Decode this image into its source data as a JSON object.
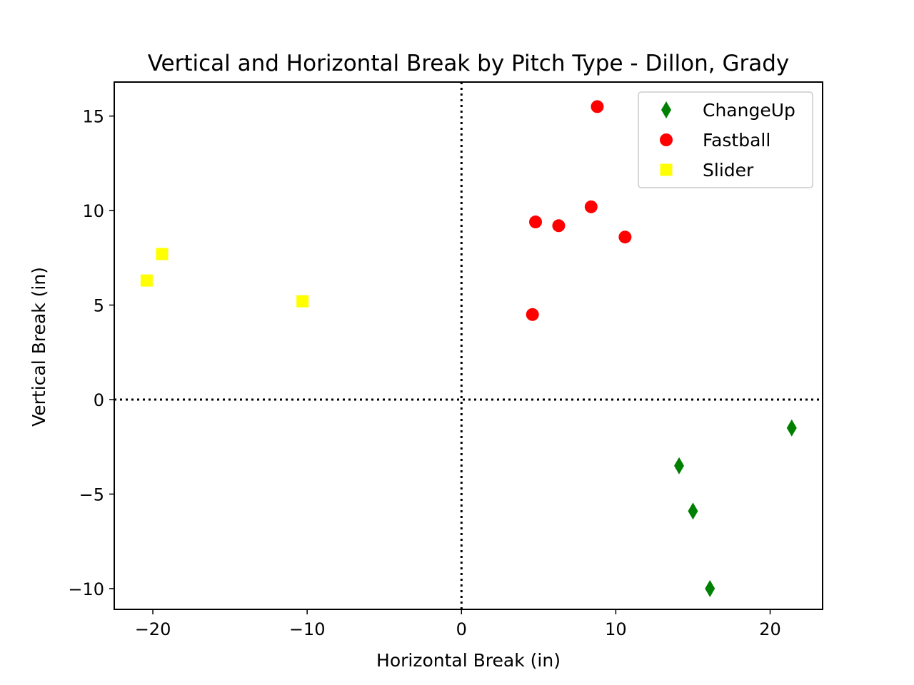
{
  "chart_data": {
    "type": "scatter",
    "title": "Vertical and Horizontal Break by Pitch Type - Dillon, Grady",
    "xlabel": "Horizontal Break (in)",
    "ylabel": "Vertical Break (in)",
    "xlim": [
      -22.5,
      23.4
    ],
    "ylim": [
      -11.1,
      16.8
    ],
    "xticks": [
      -20,
      -10,
      0,
      10,
      20
    ],
    "xtick_labels": [
      "−20",
      "−10",
      "0",
      "10",
      "20"
    ],
    "yticks": [
      -10,
      -5,
      0,
      5,
      10,
      15
    ],
    "ytick_labels": [
      "−10",
      "−5",
      "0",
      "5",
      "10",
      "15"
    ],
    "grid": false,
    "legend_position": "top-right",
    "reference_lines": [
      {
        "axis": "x",
        "value": 0,
        "style": "dotted",
        "color": "#000000"
      },
      {
        "axis": "y",
        "value": 0,
        "style": "dotted",
        "color": "#000000"
      }
    ],
    "series": [
      {
        "name": "ChangeUp",
        "marker": "diamond",
        "color": "#008000",
        "points": [
          [
            21.4,
            -1.5
          ],
          [
            14.1,
            -3.5
          ],
          [
            15.0,
            -5.9
          ],
          [
            16.1,
            -10.0
          ]
        ]
      },
      {
        "name": "Fastball",
        "marker": "circle",
        "color": "#ff0000",
        "points": [
          [
            8.8,
            15.5
          ],
          [
            8.4,
            10.2
          ],
          [
            4.8,
            9.4
          ],
          [
            6.3,
            9.2
          ],
          [
            10.6,
            8.6
          ],
          [
            4.6,
            4.5
          ]
        ]
      },
      {
        "name": "Slider",
        "marker": "square",
        "color": "#ffff00",
        "points": [
          [
            -19.4,
            7.7
          ],
          [
            -20.4,
            6.3
          ],
          [
            -10.3,
            5.2
          ]
        ]
      }
    ]
  }
}
